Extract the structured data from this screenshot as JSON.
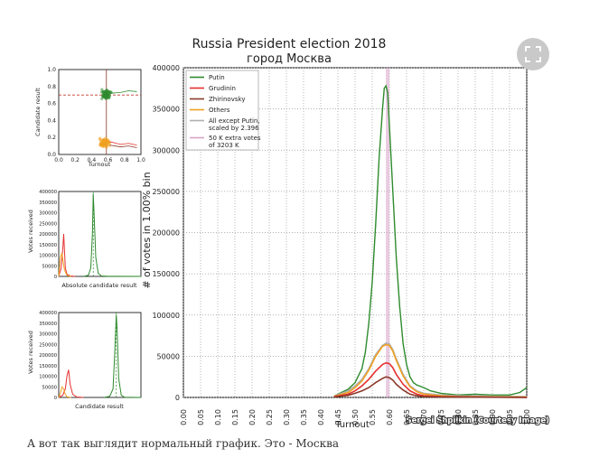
{
  "caption": "А вот так выглядит нормальный график. Это - Москва",
  "watermark": "Sergei Shpilkin (Courtesy Image)",
  "expand_icon": "expand-icon",
  "colors": {
    "putin": "#2e8b2e",
    "grudinin": "#e53030",
    "zhirinovsky": "#8b3a2a",
    "others": "#f0a020",
    "all_except": "#b0b0b0",
    "extra": "#d9a3c9"
  },
  "chart_data": [
    {
      "type": "line",
      "title": "Russia President election 2018",
      "subtitle": "город Москва",
      "xlabel": "Turnout",
      "ylabel": "# of votes in 1.00% bin",
      "xlim": [
        0,
        1
      ],
      "ylim": [
        0,
        400000
      ],
      "xticks": [
        "0.00",
        "0.05",
        "0.10",
        "0.15",
        "0.20",
        "0.25",
        "0.30",
        "0.35",
        "0.40",
        "0.45",
        "0.50",
        "0.55",
        "0.60",
        "0.65",
        "0.70",
        "0.75",
        "0.80",
        "0.85",
        "0.90",
        "0.95",
        "1.00"
      ],
      "yticks": [
        "0",
        "50000",
        "100000",
        "150000",
        "200000",
        "250000",
        "300000",
        "350000",
        "400000"
      ],
      "grid": true,
      "legend_placement": "top-left",
      "legend": [
        "Putin",
        "Grudinin",
        "Zhirinovsky",
        "Others",
        "All except Putin, scaled by 2.396",
        "50 K extra votes of 3203 K"
      ],
      "series": [
        {
          "name": "Putin",
          "color_key": "putin",
          "x": [
            0.44,
            0.46,
            0.48,
            0.5,
            0.52,
            0.53,
            0.54,
            0.55,
            0.56,
            0.57,
            0.58,
            0.585,
            0.59,
            0.595,
            0.6,
            0.61,
            0.62,
            0.63,
            0.64,
            0.65,
            0.66,
            0.67,
            0.68,
            0.7,
            0.72,
            0.75,
            0.8,
            0.85,
            0.9,
            0.95,
            0.98,
            1.0
          ],
          "y": [
            2000,
            6000,
            10000,
            18000,
            35000,
            55000,
            90000,
            140000,
            210000,
            290000,
            350000,
            375000,
            378000,
            370000,
            330000,
            250000,
            170000,
            110000,
            65000,
            40000,
            25000,
            18000,
            15000,
            12000,
            8000,
            5000,
            3000,
            4000,
            3000,
            3000,
            6000,
            12000
          ]
        },
        {
          "name": "All except Putin, scaled by 2.396",
          "color_key": "all_except",
          "x": [
            0.44,
            0.48,
            0.5,
            0.52,
            0.54,
            0.56,
            0.58,
            0.59,
            0.6,
            0.61,
            0.62,
            0.64,
            0.66,
            0.68,
            0.7,
            0.75,
            0.8,
            1.0
          ],
          "y": [
            2000,
            8000,
            14000,
            22000,
            35000,
            52000,
            63000,
            66000,
            65000,
            58000,
            47000,
            28000,
            14000,
            8000,
            5000,
            3000,
            2000,
            1000
          ]
        },
        {
          "name": "Others",
          "color_key": "others",
          "x": [
            0.44,
            0.48,
            0.5,
            0.52,
            0.54,
            0.56,
            0.58,
            0.59,
            0.6,
            0.61,
            0.62,
            0.64,
            0.66,
            0.68,
            0.7,
            0.75,
            0.8,
            1.0
          ],
          "y": [
            1500,
            6000,
            12000,
            20000,
            33000,
            50000,
            62000,
            64000,
            63000,
            56000,
            45000,
            26000,
            13000,
            7000,
            4000,
            2000,
            1000,
            500
          ]
        },
        {
          "name": "Grudinin",
          "color_key": "grudinin",
          "x": [
            0.44,
            0.48,
            0.5,
            0.52,
            0.54,
            0.56,
            0.58,
            0.59,
            0.6,
            0.61,
            0.62,
            0.64,
            0.66,
            0.68,
            0.7,
            0.75,
            1.0
          ],
          "y": [
            1000,
            4000,
            8000,
            14000,
            22000,
            32000,
            40000,
            42000,
            41000,
            36000,
            28000,
            16000,
            8000,
            4000,
            2000,
            1000,
            0
          ]
        },
        {
          "name": "Zhirinovsky",
          "color_key": "zhirinovsky",
          "x": [
            0.44,
            0.48,
            0.5,
            0.52,
            0.54,
            0.56,
            0.58,
            0.59,
            0.6,
            0.61,
            0.62,
            0.64,
            0.66,
            0.68,
            0.7,
            0.75,
            1.0
          ],
          "y": [
            500,
            2500,
            5000,
            8000,
            12000,
            18000,
            23000,
            25000,
            24000,
            21000,
            16000,
            9000,
            4000,
            2000,
            1000,
            500,
            0
          ]
        }
      ],
      "vlines": [
        {
          "name": "50 K extra votes of 3203 K",
          "x": 0.595,
          "color_key": "extra"
        }
      ]
    },
    {
      "type": "scatter",
      "xlabel": "Turnout",
      "ylabel": "Candidate result",
      "xticks": [
        "0.0",
        "0.2",
        "0.4",
        "0.6",
        "0.8",
        "1.0"
      ],
      "yticks": [
        "0.0",
        "0.2",
        "0.4",
        "0.6",
        "0.8",
        "1.0"
      ],
      "xlim": [
        0,
        1
      ],
      "ylim": [
        0,
        1
      ],
      "hline": 0.7,
      "vline": 0.58,
      "clusters": [
        {
          "name": "Putin",
          "color_key": "putin",
          "cx": 0.58,
          "cy": 0.71
        },
        {
          "name": "Others",
          "color_key": "others",
          "cx": 0.56,
          "cy": 0.14
        }
      ]
    },
    {
      "type": "line",
      "xlabel": "Absolute candidate result",
      "ylabel": "Votes received",
      "yticks": [
        "0",
        "50000",
        "100000",
        "150000",
        "200000",
        "250000",
        "300000",
        "350000",
        "400000"
      ],
      "xlim": [
        0,
        1
      ],
      "ylim": [
        0,
        400000
      ],
      "series": [
        {
          "name": "Putin",
          "color_key": "putin",
          "x": [
            0.3,
            0.36,
            0.39,
            0.41,
            0.42,
            0.43,
            0.45,
            0.48,
            0.52,
            0.6,
            1.0
          ],
          "y": [
            0,
            5000,
            40000,
            200000,
            390000,
            300000,
            90000,
            15000,
            2000,
            500,
            0
          ]
        },
        {
          "name": "Grudinin",
          "color_key": "grudinin",
          "x": [
            0.0,
            0.03,
            0.05,
            0.06,
            0.07,
            0.08,
            0.1,
            0.14,
            0.2
          ],
          "y": [
            0,
            40000,
            130000,
            200000,
            120000,
            40000,
            10000,
            2000,
            0
          ]
        },
        {
          "name": "Others",
          "color_key": "others",
          "x": [
            0.0,
            0.02,
            0.04,
            0.05,
            0.07,
            0.1,
            0.15
          ],
          "y": [
            0,
            90000,
            110000,
            80000,
            30000,
            5000,
            0
          ]
        }
      ]
    },
    {
      "type": "line",
      "xlabel": "Candidate result",
      "ylabel": "Votes received",
      "yticks": [
        "0",
        "50000",
        "100000",
        "150000",
        "200000",
        "250000",
        "300000",
        "350000",
        "400000"
      ],
      "xlim": [
        0,
        1
      ],
      "ylim": [
        0,
        400000
      ],
      "series": [
        {
          "name": "Putin",
          "color_key": "putin",
          "x": [
            0.55,
            0.62,
            0.66,
            0.68,
            0.7,
            0.71,
            0.73,
            0.76,
            0.8,
            1.0
          ],
          "y": [
            0,
            5000,
            40000,
            200000,
            390000,
            320000,
            90000,
            10000,
            1000,
            0
          ]
        },
        {
          "name": "Grudinin",
          "color_key": "grudinin",
          "x": [
            0.0,
            0.05,
            0.08,
            0.1,
            0.12,
            0.14,
            0.17,
            0.22,
            0.3
          ],
          "y": [
            0,
            10000,
            40000,
            100000,
            130000,
            60000,
            15000,
            2000,
            0
          ]
        },
        {
          "name": "Others",
          "color_key": "others",
          "x": [
            0.0,
            0.02,
            0.04,
            0.06,
            0.08,
            0.1,
            0.15
          ],
          "y": [
            0,
            20000,
            50000,
            40000,
            15000,
            3000,
            0
          ]
        }
      ]
    }
  ]
}
